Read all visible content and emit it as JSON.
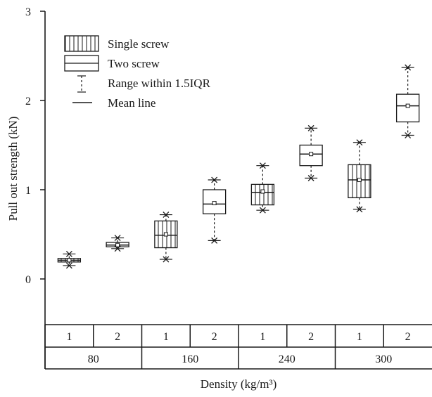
{
  "chart_data": {
    "type": "box",
    "title": "",
    "xlabel": "Density (kg/m³)",
    "ylabel": "Pull out strength (kN)",
    "ylim": [
      -0.5,
      3
    ],
    "yticks": [
      "0",
      "1",
      "2",
      "3"
    ],
    "grid": false,
    "legend_position": "top-left",
    "legend": [
      {
        "key": "single",
        "label": "Single screw"
      },
      {
        "key": "two",
        "label": "Two screw"
      },
      {
        "key": "whisker",
        "label": "Range within 1.5IQR"
      },
      {
        "key": "mean",
        "label": "Mean line"
      }
    ],
    "groups": [
      {
        "density": "80",
        "boxes": [
          {
            "label": "1",
            "series": "single",
            "q1": 0.19,
            "median": 0.21,
            "q3": 0.23,
            "mean": 0.21,
            "lo": 0.15,
            "hi": 0.28,
            "extremes": [
              0.15,
              0.28
            ]
          },
          {
            "label": "2",
            "series": "two",
            "q1": 0.36,
            "median": 0.38,
            "q3": 0.41,
            "mean": 0.38,
            "lo": 0.34,
            "hi": 0.46,
            "extremes": [
              0.34,
              0.46
            ]
          }
        ]
      },
      {
        "density": "160",
        "boxes": [
          {
            "label": "1",
            "series": "single",
            "q1": 0.35,
            "median": 0.49,
            "q3": 0.65,
            "mean": 0.5,
            "lo": 0.22,
            "hi": 0.72,
            "extremes": [
              0.22,
              0.72
            ]
          },
          {
            "label": "2",
            "series": "two",
            "q1": 0.73,
            "median": 0.84,
            "q3": 1.0,
            "mean": 0.85,
            "lo": 0.43,
            "hi": 1.11,
            "extremes": [
              0.43,
              1.11
            ]
          }
        ]
      },
      {
        "density": "240",
        "boxes": [
          {
            "label": "1",
            "series": "single",
            "q1": 0.83,
            "median": 0.97,
            "q3": 1.06,
            "mean": 0.98,
            "lo": 0.77,
            "hi": 1.27,
            "extremes": [
              0.77,
              1.27
            ]
          },
          {
            "label": "2",
            "series": "two",
            "q1": 1.27,
            "median": 1.4,
            "q3": 1.5,
            "mean": 1.4,
            "lo": 1.13,
            "hi": 1.69,
            "extremes": [
              1.13,
              1.69
            ]
          }
        ]
      },
      {
        "density": "300",
        "boxes": [
          {
            "label": "1",
            "series": "single",
            "q1": 0.91,
            "median": 1.11,
            "q3": 1.28,
            "mean": 1.11,
            "lo": 0.78,
            "hi": 1.53,
            "extremes": [
              0.78,
              1.53
            ]
          },
          {
            "label": "2",
            "series": "two",
            "q1": 1.76,
            "median": 1.94,
            "q3": 2.07,
            "mean": 1.94,
            "lo": 1.61,
            "hi": 2.37,
            "extremes": [
              1.61,
              2.37
            ]
          }
        ]
      }
    ]
  }
}
